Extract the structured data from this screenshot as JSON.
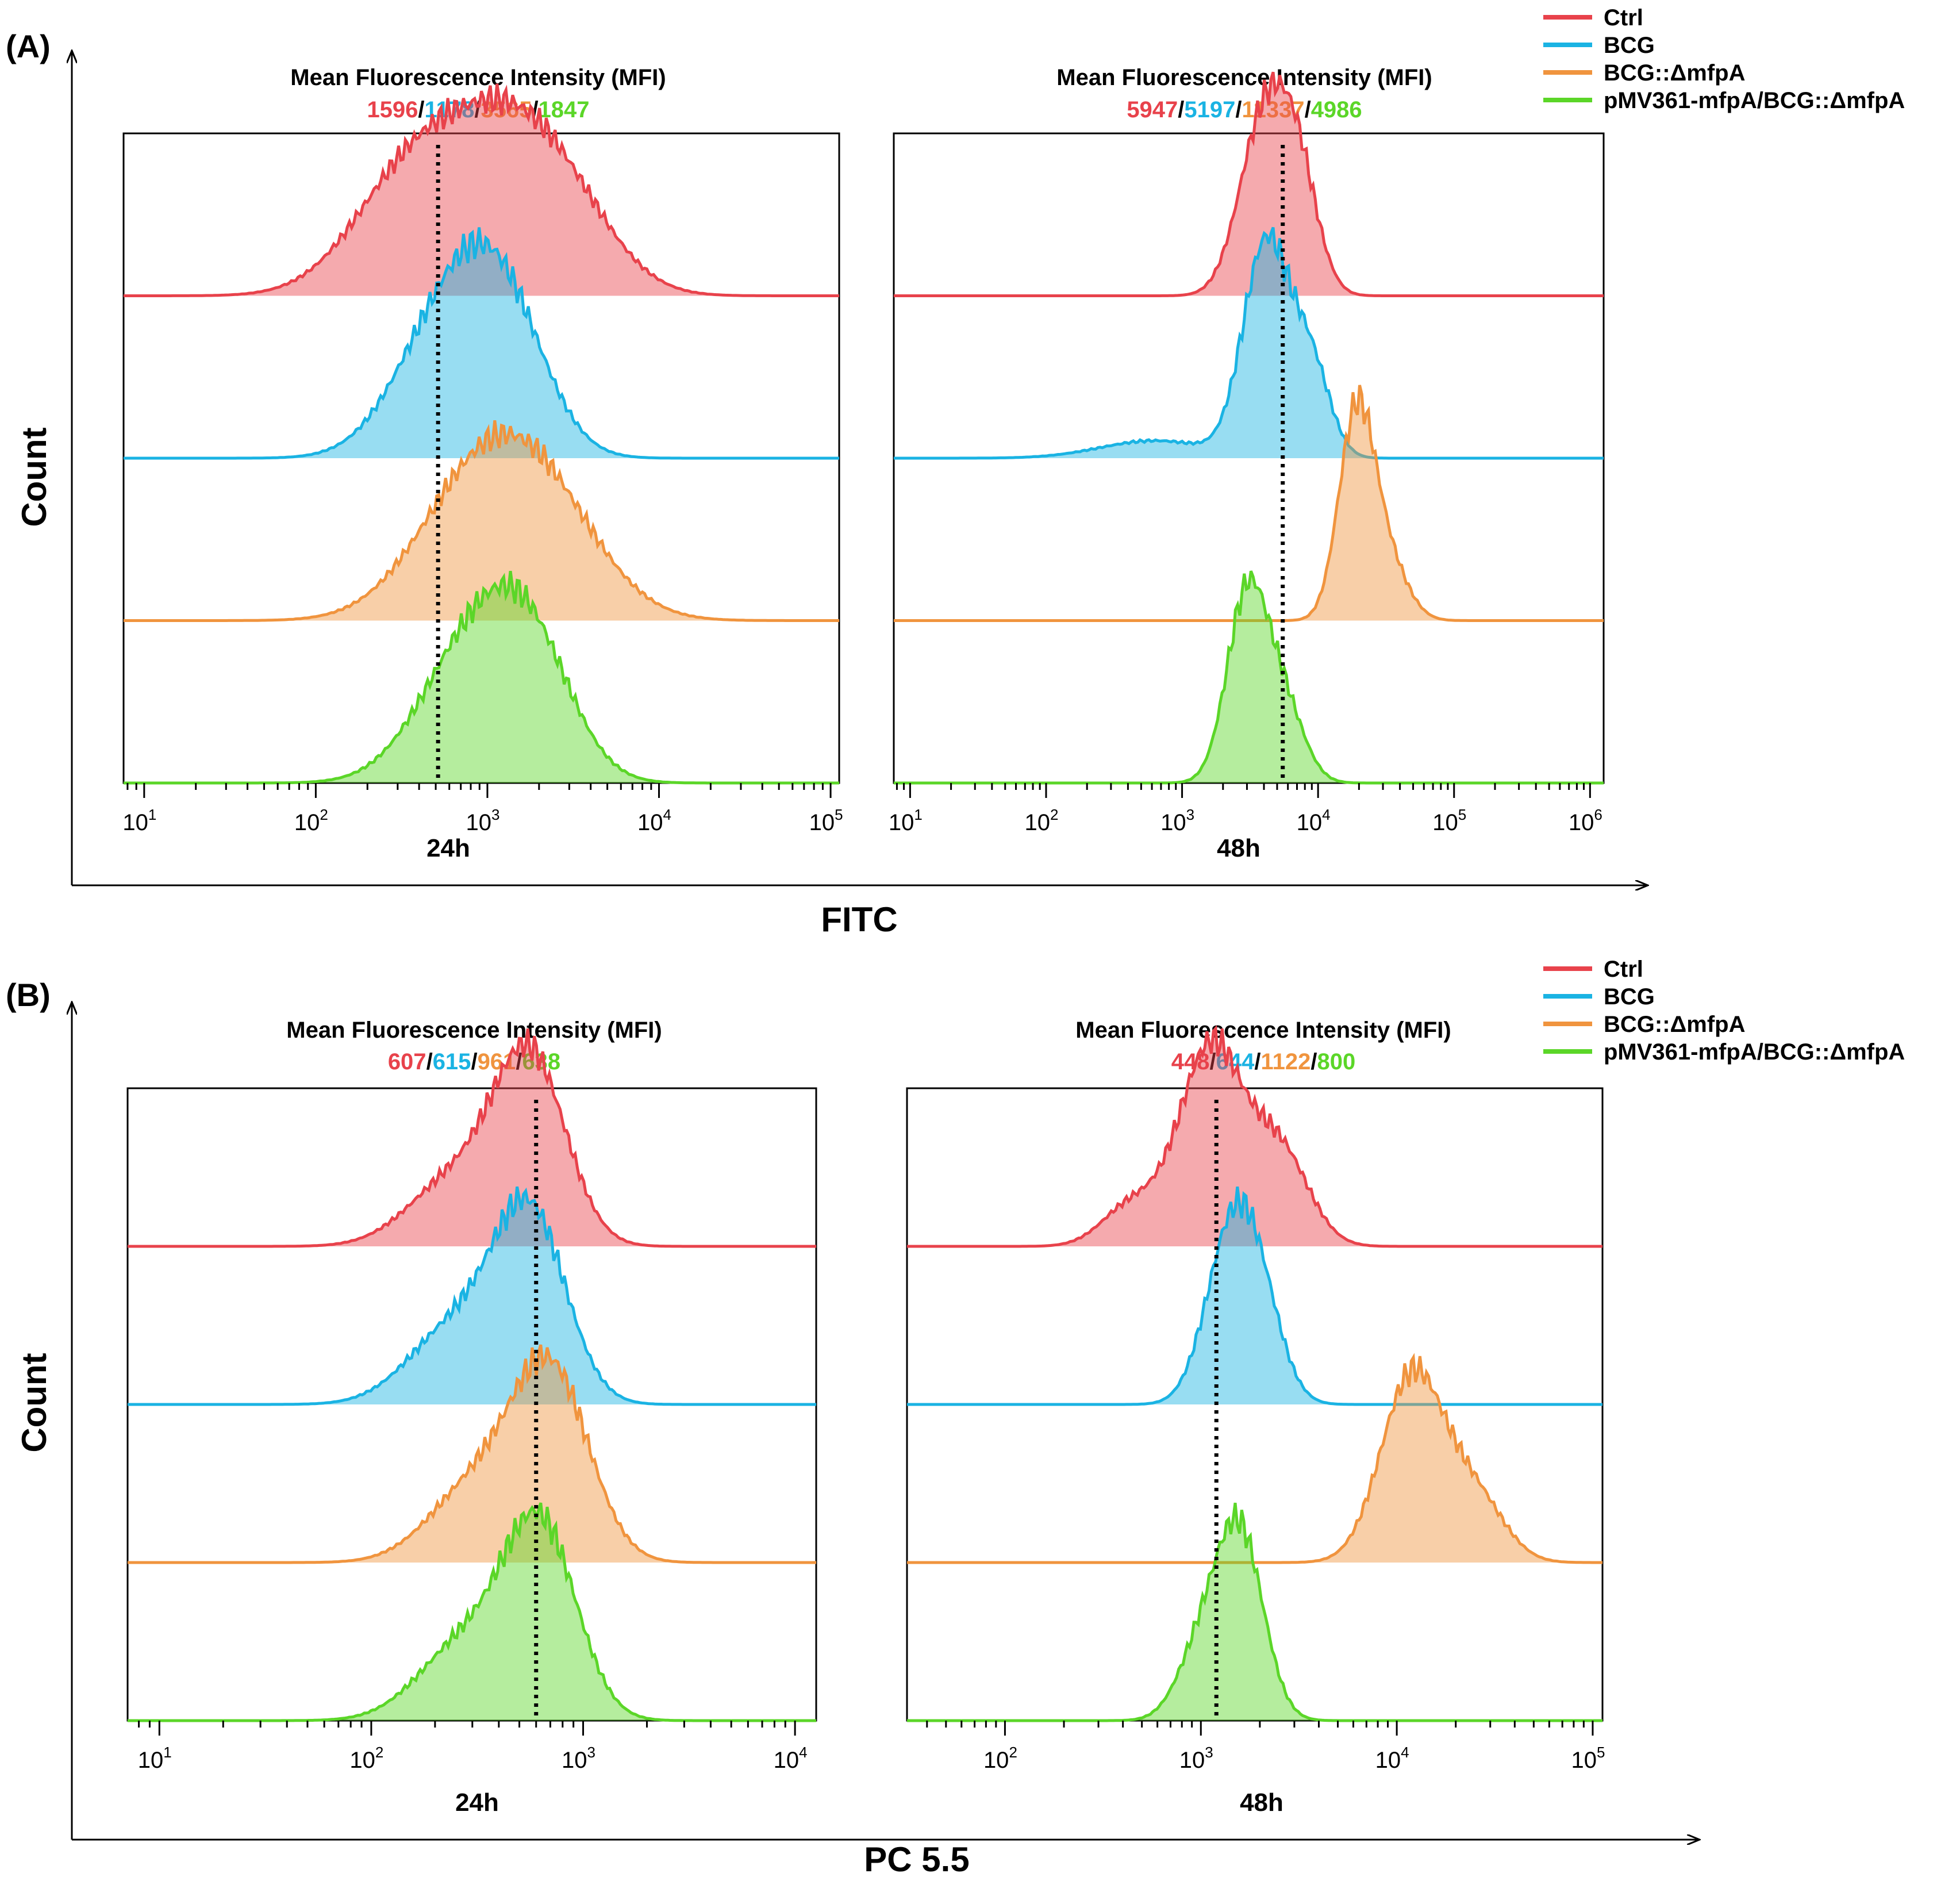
{
  "colors": {
    "ctrl": "#e8424b",
    "bcg": "#1ab3e3",
    "mut": "#f0943e",
    "comp": "#5bd628"
  },
  "legend": {
    "entries": [
      {
        "key": "ctrl",
        "label": "Ctrl"
      },
      {
        "key": "bcg",
        "label": "BCG"
      },
      {
        "key": "mut",
        "label": "BCG::ΔmfpA"
      },
      {
        "key": "comp",
        "label": "pMV361-mfpA/BCG::ΔmfpA"
      }
    ]
  },
  "chart_data": [
    {
      "type": "histogram-overlay",
      "panel": "(A)",
      "xlabel": "FITC",
      "ylabel": "Count",
      "plots": [
        {
          "time": "24h",
          "title": "Mean Fluorescence Intensity (MFI)",
          "mfi": [
            "1596",
            "1178",
            "3565",
            "1847"
          ],
          "marker_x": 516,
          "x_range_log10": [
            0.88,
            5.05
          ],
          "ticks": [
            "1",
            "2",
            "3",
            "4",
            "5"
          ],
          "series": [
            {
              "key": "ctrl",
              "name": "Ctrl",
              "peaks": [
                {
                  "log": 2.6,
                  "width": 0.35,
                  "h": 0.9
                },
                {
                  "log": 3.1,
                  "width": 0.3,
                  "h": 0.72
                },
                {
                  "log": 3.45,
                  "width": 0.3,
                  "h": 0.55
                }
              ]
            },
            {
              "key": "bcg",
              "name": "BCG",
              "peaks": [
                {
                  "log": 2.78,
                  "width": 0.3,
                  "h": 0.98
                },
                {
                  "log": 3.1,
                  "width": 0.25,
                  "h": 0.8
                }
              ]
            },
            {
              "key": "mut",
              "name": "BCG::ΔmfpA",
              "peaks": [
                {
                  "log": 2.9,
                  "width": 0.35,
                  "h": 0.8
                },
                {
                  "log": 3.3,
                  "width": 0.35,
                  "h": 0.85
                }
              ]
            },
            {
              "key": "comp",
              "name": "pMV361-mfpA/BCG::ΔmfpA",
              "peaks": [
                {
                  "log": 2.9,
                  "width": 0.3,
                  "h": 0.9
                },
                {
                  "log": 3.25,
                  "width": 0.25,
                  "h": 0.8
                }
              ]
            }
          ]
        },
        {
          "time": "48h",
          "title": "Mean Fluorescence Intensity (MFI)",
          "mfi": [
            "5947",
            "5197",
            "11337",
            "4986"
          ],
          "marker_x": 5500,
          "x_range_log10": [
            0.88,
            6.1
          ],
          "ticks": [
            "1",
            "2",
            "3",
            "4",
            "5",
            "6"
          ],
          "series": [
            {
              "key": "ctrl",
              "name": "Ctrl",
              "peaks": [
                {
                  "log": 3.6,
                  "width": 0.18,
                  "h": 0.95
                },
                {
                  "log": 3.85,
                  "width": 0.15,
                  "h": 0.6
                }
              ]
            },
            {
              "key": "bcg",
              "name": "BCG",
              "peaks": [
                {
                  "log": 3.62,
                  "width": 0.17,
                  "h": 0.98
                },
                {
                  "log": 3.95,
                  "width": 0.14,
                  "h": 0.4
                },
                {
                  "log": 2.8,
                  "width": 0.4,
                  "h": 0.08
                }
              ]
            },
            {
              "key": "mut",
              "name": "BCG::ΔmfpA",
              "peaks": [
                {
                  "log": 4.28,
                  "width": 0.13,
                  "h": 1.0
                },
                {
                  "log": 4.5,
                  "width": 0.15,
                  "h": 0.3
                }
              ]
            },
            {
              "key": "comp",
              "name": "pMV361-mfpA/BCG::ΔmfpA",
              "peaks": [
                {
                  "log": 3.48,
                  "width": 0.15,
                  "h": 0.9
                },
                {
                  "log": 3.75,
                  "width": 0.15,
                  "h": 0.35
                }
              ]
            }
          ]
        }
      ]
    },
    {
      "type": "histogram-overlay",
      "panel": "(B)",
      "xlabel": "PC 5.5",
      "ylabel": "Count",
      "plots": [
        {
          "time": "24h",
          "title": "Mean Fluorescence Intensity (MFI)",
          "mfi": [
            "607",
            "615",
            "961",
            "638"
          ],
          "marker_x": 600,
          "x_range_log10": [
            0.85,
            4.1
          ],
          "ticks": [
            "1",
            "2",
            "3",
            "4"
          ],
          "series": [
            {
              "key": "ctrl",
              "name": "Ctrl",
              "peaks": [
                {
                  "log": 2.75,
                  "width": 0.17,
                  "h": 0.95
                },
                {
                  "log": 2.4,
                  "width": 0.22,
                  "h": 0.35
                }
              ]
            },
            {
              "key": "bcg",
              "name": "BCG",
              "peaks": [
                {
                  "log": 2.75,
                  "width": 0.17,
                  "h": 0.95
                },
                {
                  "log": 2.4,
                  "width": 0.22,
                  "h": 0.4
                }
              ]
            },
            {
              "key": "mut",
              "name": "BCG::ΔmfpA",
              "peaks": [
                {
                  "log": 2.85,
                  "width": 0.18,
                  "h": 0.95
                },
                {
                  "log": 2.5,
                  "width": 0.22,
                  "h": 0.4
                }
              ]
            },
            {
              "key": "comp",
              "name": "pMV361-mfpA/BCG::ΔmfpA",
              "peaks": [
                {
                  "log": 2.8,
                  "width": 0.17,
                  "h": 0.95
                },
                {
                  "log": 2.45,
                  "width": 0.22,
                  "h": 0.4
                }
              ]
            }
          ]
        },
        {
          "time": "48h",
          "title": "Mean Fluorescence Intensity (MFI)",
          "mfi": [
            "448",
            "644",
            "1122",
            "800"
          ],
          "marker_x": 1200,
          "x_range_log10": [
            1.5,
            5.05
          ],
          "ticks": [
            "2",
            "3",
            "4",
            "5"
          ],
          "series": [
            {
              "key": "ctrl",
              "name": "Ctrl",
              "peaks": [
                {
                  "log": 3.05,
                  "width": 0.16,
                  "h": 0.95
                },
                {
                  "log": 3.4,
                  "width": 0.15,
                  "h": 0.45
                },
                {
                  "log": 2.65,
                  "width": 0.15,
                  "h": 0.2
                }
              ]
            },
            {
              "key": "bcg",
              "name": "BCG",
              "peaks": [
                {
                  "log": 3.15,
                  "width": 0.13,
                  "h": 0.95
                },
                {
                  "log": 3.3,
                  "width": 0.12,
                  "h": 0.5
                }
              ]
            },
            {
              "key": "mut",
              "name": "BCG::ΔmfpA",
              "peaks": [
                {
                  "log": 4.08,
                  "width": 0.16,
                  "h": 0.9
                },
                {
                  "log": 4.4,
                  "width": 0.15,
                  "h": 0.3
                }
              ]
            },
            {
              "key": "comp",
              "name": "pMV361-mfpA/BCG::ΔmfpA",
              "peaks": [
                {
                  "log": 3.2,
                  "width": 0.12,
                  "h": 0.95
                },
                {
                  "log": 3.0,
                  "width": 0.12,
                  "h": 0.35
                }
              ]
            }
          ]
        }
      ]
    }
  ]
}
